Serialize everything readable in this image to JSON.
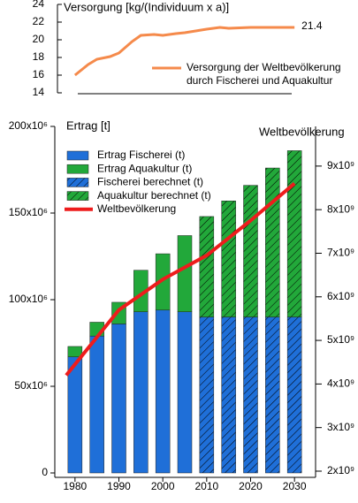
{
  "chart_data": [
    {
      "type": "line",
      "title": "Versorgung [kg/(Individuum x a)]",
      "x": [
        1980,
        1983,
        1985,
        1988,
        1990,
        1993,
        1995,
        1998,
        2000,
        2003,
        2005,
        2010,
        2013,
        2015,
        2020,
        2025,
        2030
      ],
      "series": [
        {
          "name": "Versorgung der Weltbevölkerung durch Fischerei und Aquakultur",
          "color": "#f58a4b",
          "values": [
            16.0,
            17.2,
            17.8,
            18.1,
            18.5,
            19.8,
            20.5,
            20.6,
            20.5,
            20.7,
            20.8,
            21.2,
            21.4,
            21.3,
            21.4,
            21.4,
            21.4
          ]
        }
      ],
      "label_last": true,
      "xlim": [
        1975.4,
        2034.8
      ],
      "ylim": [
        14,
        24
      ],
      "yticks": [
        14,
        16,
        18,
        20,
        22,
        24
      ]
    },
    {
      "type": "bar",
      "stacked": true,
      "ylabel": "Ertrag [t]",
      "y2label": "Weltbevölkerung",
      "x": [
        1980,
        1985,
        1990,
        1995,
        2000,
        2005,
        2010,
        2015,
        2020,
        2025,
        2030
      ],
      "series": [
        {
          "name": "Ertrag Fischerei (t)",
          "color": "#1f6fd8",
          "hatch": false,
          "values": [
            67000000,
            79000000,
            86000000,
            93000000,
            94000000,
            93000000,
            null,
            null,
            null,
            null,
            null
          ]
        },
        {
          "name": "Ertrag Aquakultur (t)",
          "color": "#22a83a",
          "hatch": false,
          "values": [
            6000000,
            8000000,
            12500000,
            24000000,
            32500000,
            44000000,
            null,
            null,
            null,
            null,
            null
          ]
        },
        {
          "name": "Fischerei berechnet (t)",
          "color": "#1f6fd8",
          "hatch": true,
          "values": [
            null,
            null,
            null,
            null,
            null,
            null,
            90000000,
            90000000,
            90000000,
            90000000,
            90000000
          ]
        },
        {
          "name": "Aquakultur berechnet (t)",
          "color": "#22a83a",
          "hatch": true,
          "values": [
            null,
            null,
            null,
            null,
            null,
            null,
            58000000,
            67000000,
            76000000,
            86000000,
            96000000
          ]
        },
        {
          "name": "Weltbevölkerung",
          "type": "line",
          "axis": "y2",
          "color": "#ee1c1c",
          "x": [
            1978,
            1980,
            1990,
            2000,
            2010,
            2020,
            2030
          ],
          "values": [
            4200000000,
            4450000000,
            5700000000,
            6400000000,
            6950000000,
            7750000000,
            8600000000
          ]
        }
      ],
      "xlim": [
        1975.4,
        2034.8
      ],
      "xticks": [
        1980,
        1990,
        2000,
        2010,
        2020,
        2030
      ],
      "ylim": [
        0,
        200000000
      ],
      "yticks": [
        0,
        {
          "value": 50000000,
          "label": "50x10⁶"
        },
        {
          "value": 100000000,
          "label": "100x10⁶"
        },
        {
          "value": 150000000,
          "label": "150x10⁶"
        },
        {
          "value": 200000000,
          "label": "200x10⁶"
        }
      ],
      "y2lim": [
        1959000000,
        9910000000
      ],
      "y2ticks": [
        {
          "value": 2000000000,
          "label": "2x10⁹"
        },
        {
          "value": 3000000000,
          "label": "3x10⁹"
        },
        {
          "value": 4000000000,
          "label": "4x10⁹"
        },
        {
          "value": 5000000000,
          "label": "5x10⁹"
        },
        {
          "value": 6000000000,
          "label": "6x10⁹"
        },
        {
          "value": 7000000000,
          "label": "7x10⁹"
        },
        {
          "value": 8000000000,
          "label": "8x10⁹"
        },
        {
          "value": 9000000000,
          "label": "9x10⁹"
        }
      ],
      "legend": "upper left"
    }
  ]
}
